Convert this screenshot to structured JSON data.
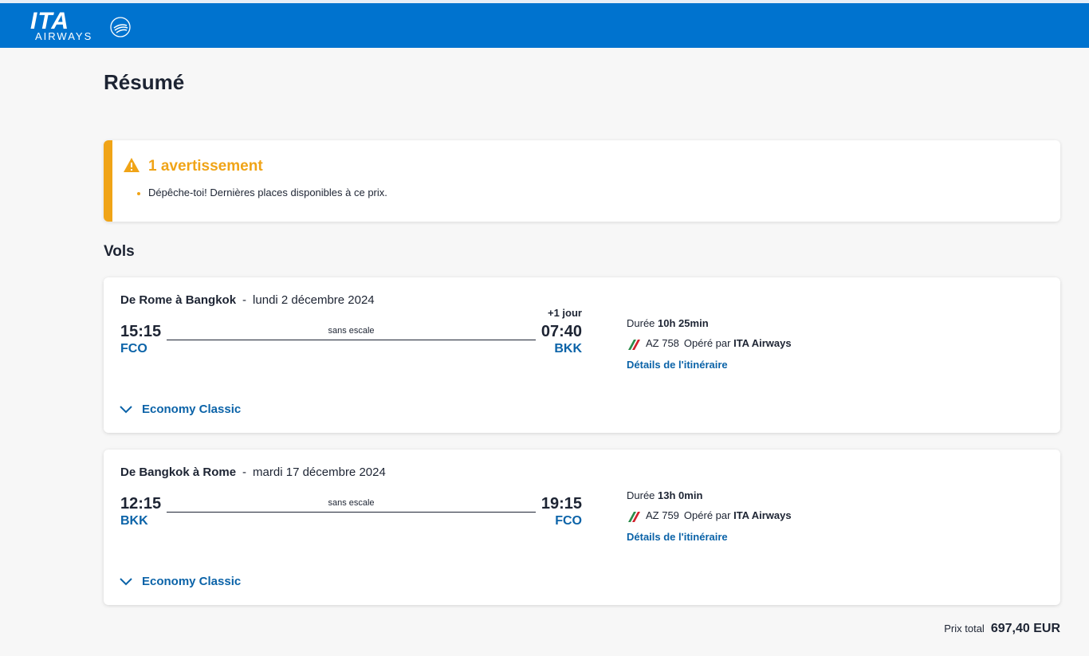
{
  "header": {
    "logo_text": "ITA",
    "logo_subtext": "AIRWAYS",
    "alliance_text": "SKYTEAM",
    "bg_color": "#0073cf"
  },
  "page": {
    "title": "Résumé"
  },
  "warning": {
    "title": "1 avertissement",
    "items": [
      "Dépêche-toi! Dernières places disponibles à ce prix."
    ],
    "color": "#f0a417",
    "icon": "warning-triangle-icon"
  },
  "flights_section": {
    "title": "Vols"
  },
  "flights": [
    {
      "route": "De Rome à Bangkok",
      "separator": "-",
      "date": "lundi 2 décembre 2024",
      "departure_time": "15:15",
      "departure_code": "FCO",
      "arrival_time": "07:40",
      "arrival_code": "BKK",
      "day_offset": "+1 jour",
      "stops": "sans escale",
      "duration_label": "Durée",
      "duration": "10h 25min",
      "flight_number": "AZ 758",
      "operated_label": "Opéré par",
      "carrier": "ITA Airways",
      "details_link": "Détails de l'itinéraire",
      "cabin": "Economy Classic"
    },
    {
      "route": "De Bangkok à Rome",
      "separator": "-",
      "date": "mardi 17 décembre 2024",
      "departure_time": "12:15",
      "departure_code": "BKK",
      "arrival_time": "19:15",
      "arrival_code": "FCO",
      "day_offset": "",
      "stops": "sans escale",
      "duration_label": "Durée",
      "duration": "13h 0min",
      "flight_number": "AZ 759",
      "operated_label": "Opéré par",
      "carrier": "ITA Airways",
      "details_link": "Détails de l'itinéraire",
      "cabin": "Economy Classic"
    }
  ],
  "total": {
    "label": "Prix total",
    "amount": "697,40 EUR"
  },
  "colors": {
    "link": "#0b63a8",
    "text": "#1d2433"
  }
}
